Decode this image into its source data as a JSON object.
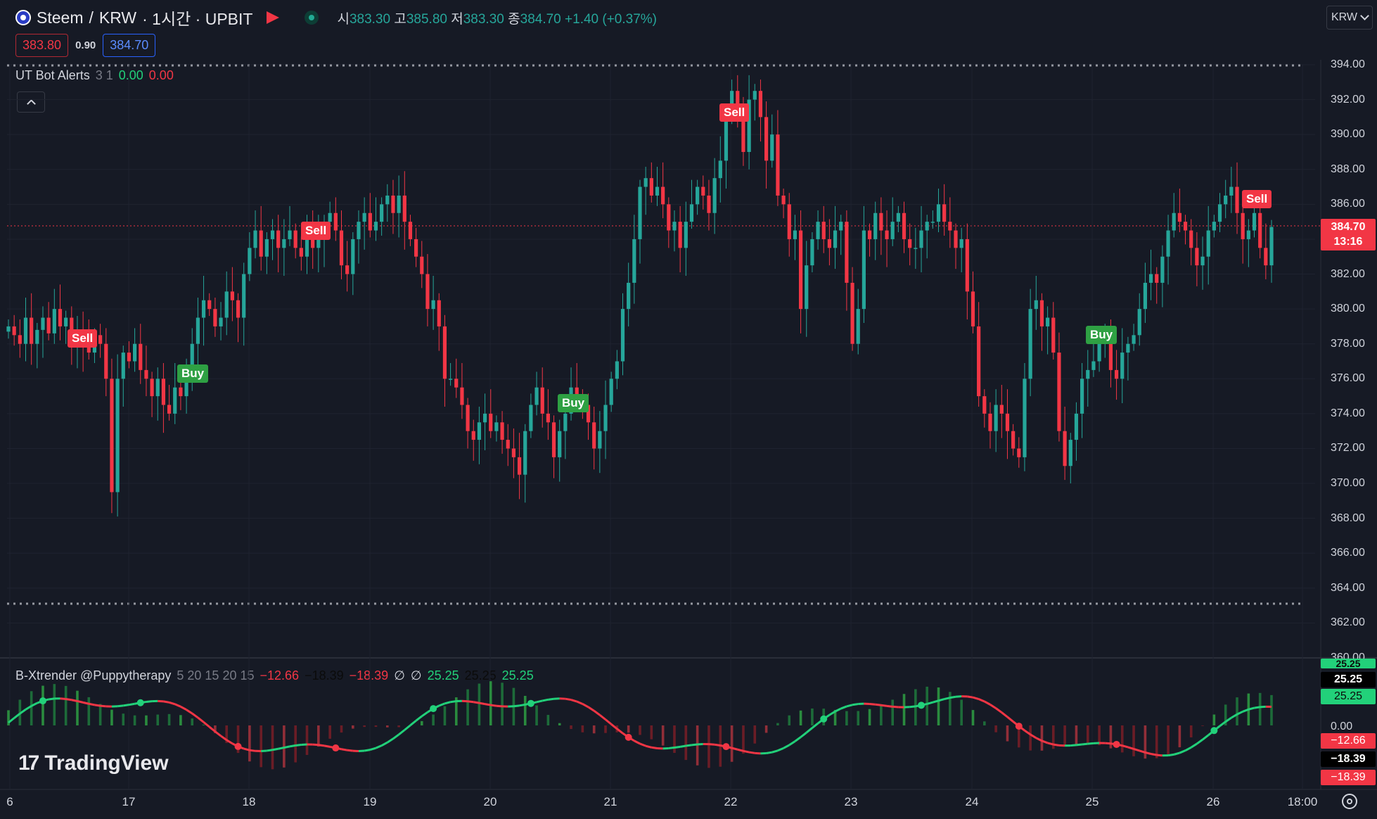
{
  "header": {
    "symbol": "Steem",
    "sep1": "/",
    "quote": "KRW",
    "interval_exchange": "· 1시간 · UPBIT",
    "open_label": "시",
    "open": "383.30",
    "high_label": "고",
    "high": "385.80",
    "low_label": "저",
    "low": "383.30",
    "close_label": "종",
    "close": "384.70",
    "change": "+1.40 (+0.37%)",
    "bid": "383.80",
    "spread": "0.90",
    "ask": "384.70",
    "currency_button": "KRW"
  },
  "indicator_main": {
    "name": "UT Bot Alerts",
    "params": "3 1",
    "value1": "0.00",
    "value2": "0.00"
  },
  "indicator_sub": {
    "name": "B-Xtrender @Puppytherapy",
    "params": "5 20 15 20 15",
    "v1": "−12.66",
    "v2": "−18.39",
    "v3": "−18.39",
    "v4": "∅",
    "v5": "∅",
    "v6": "25.25",
    "v7": "25.25",
    "v8": "25.25"
  },
  "price_axis": [
    "394.00",
    "392.00",
    "390.00",
    "388.00",
    "386.00",
    "384.00",
    "382.00",
    "380.00",
    "378.00",
    "376.00",
    "374.00",
    "372.00",
    "370.00",
    "368.00",
    "366.00",
    "364.00",
    "362.00",
    "360.00"
  ],
  "sub_axis": {
    "zero": "0.00"
  },
  "badges": {
    "price": "384.70",
    "countdown": "13:16",
    "sub_top": "25.25",
    "sub_top2": "25.25",
    "sub_top3": "25.25",
    "sub_neg1": "−12.66",
    "sub_neg2": "−18.39",
    "sub_neg3": "−18.39"
  },
  "time_axis": [
    "6",
    "17",
    "18",
    "19",
    "20",
    "21",
    "22",
    "23",
    "24",
    "25",
    "26",
    "18:00"
  ],
  "signals": [
    {
      "label": "Sell",
      "type": "sell"
    },
    {
      "label": "Buy",
      "type": "buy"
    },
    {
      "label": "Sell",
      "type": "sell"
    },
    {
      "label": "Buy",
      "type": "buy"
    },
    {
      "label": "Sell",
      "type": "sell"
    },
    {
      "label": "Buy",
      "type": "buy"
    },
    {
      "label": "Sell",
      "type": "sell"
    }
  ],
  "logo": {
    "text": "TradingView",
    "mark": "17"
  },
  "colors": {
    "up": "#26a69a",
    "down": "#f23645",
    "bg": "#161a25",
    "accent": "#2962ff",
    "osc_up": "#22d17a"
  },
  "chart_data": {
    "type": "candlestick",
    "ylim": [
      360,
      395
    ],
    "x_labels": [
      "6",
      "17",
      "18",
      "19",
      "20",
      "21",
      "22",
      "23",
      "24",
      "25",
      "26",
      "18:00"
    ],
    "series": [
      {
        "values": [
          379.0,
          378.5,
          378.0,
          379.5,
          378.0,
          378.8,
          379.5,
          378.6,
          380.0,
          379.0,
          379.5,
          378.0,
          378.7,
          378.0,
          377.5,
          378.5,
          378.0,
          376.0,
          369.5,
          376.0,
          377.5,
          377.0,
          378.0,
          376.5,
          376.0,
          375.0,
          376.0,
          374.5,
          374.0,
          375.5,
          375.0,
          376.5,
          378.0,
          379.5,
          380.5,
          380.0,
          379.0,
          379.5,
          381.0,
          380.5,
          379.5,
          382.0,
          383.5,
          384.5,
          383.0,
          384.0,
          384.5,
          383.5,
          384.0,
          384.5,
          383.5,
          383.0,
          384.5,
          383.5,
          384.0,
          385.0,
          385.5,
          384.5,
          382.5,
          382.0,
          384.0,
          385.0,
          385.5,
          384.5,
          385.0,
          386.0,
          386.5,
          385.5,
          386.5,
          385.0,
          384.0,
          383.0,
          382.0,
          380.0,
          380.5,
          379.0,
          376.0,
          376.0,
          375.5,
          374.5,
          373.0,
          372.5,
          373.5,
          374.0,
          373.0,
          373.5,
          372.5,
          372.0,
          371.5,
          370.5,
          373.0,
          374.5,
          375.5,
          374.0,
          373.5,
          371.5,
          373.0,
          374.0,
          375.5,
          375.0,
          374.5,
          373.5,
          372.0,
          373.0,
          374.5,
          376.0,
          377.0,
          380.0,
          381.5,
          384.0,
          387.0,
          387.5,
          386.5,
          387.0,
          386.0,
          384.5,
          385.0,
          383.5,
          385.0,
          386.0,
          387.0,
          386.5,
          385.5,
          387.5,
          388.5,
          391.0,
          392.5,
          391.0,
          389.0,
          392.0,
          392.5,
          391.0,
          388.5,
          390.0,
          386.5,
          386.0,
          384.0,
          384.5,
          380.0,
          382.5,
          384.0,
          385.0,
          384.0,
          383.5,
          384.5,
          385.0,
          381.5,
          378.0,
          380.0,
          384.5,
          384.0,
          385.5,
          384.5,
          384.0,
          385.0,
          385.5,
          384.0,
          383.5,
          383.5,
          384.5,
          385.0,
          385.0,
          386.0,
          385.0,
          384.5,
          383.5,
          384.0,
          381.0,
          379.0,
          375.0,
          374.0,
          373.0,
          374.5,
          374.0,
          373.0,
          372.0,
          371.5,
          376.0,
          380.0,
          380.5,
          379.0,
          379.5,
          377.5,
          373.0,
          371.0,
          372.5,
          374.0,
          376.0,
          376.5,
          377.0,
          378.0,
          378.5,
          376.5,
          376.0,
          377.5,
          378.0,
          378.5,
          380.0,
          381.5,
          382.0,
          381.5,
          383.0,
          384.5,
          385.5,
          385.0,
          384.5,
          383.5,
          382.5,
          383.0,
          384.5,
          385.0,
          386.0,
          386.5,
          387.0,
          385.5,
          384.0,
          384.5,
          385.5,
          383.5,
          382.5,
          384.7
        ]
      }
    ]
  }
}
